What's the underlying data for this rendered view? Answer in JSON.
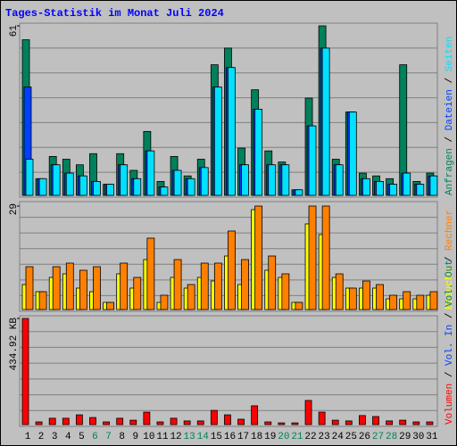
{
  "chart_data": [
    {
      "type": "bar",
      "title": "Tages-Statistik im Monat Juli 2024",
      "ylim": [
        0,
        61
      ],
      "yticks": [
        61
      ],
      "legend_separator": "/",
      "series": [
        {
          "name": "Anfragen",
          "color": "#00805c",
          "values": [
            56,
            6,
            14,
            13,
            11,
            15,
            4,
            15,
            9,
            23,
            5,
            14,
            7,
            13,
            47,
            53,
            17,
            38,
            16,
            12,
            2,
            35,
            61,
            13,
            30,
            8,
            7,
            6,
            47,
            5,
            8
          ]
        },
        {
          "name": "Dateien",
          "color": "#0040ff",
          "values": [
            39,
            6,
            11,
            8,
            7,
            5,
            4,
            11,
            6,
            16,
            3,
            9,
            6,
            10,
            39,
            46,
            11,
            31,
            11,
            11,
            2,
            25,
            53,
            11,
            30,
            6,
            5,
            4,
            8,
            4,
            7
          ]
        },
        {
          "name": "Seiten",
          "color": "#00e0ff",
          "values": [
            13,
            6,
            11,
            8,
            7,
            5,
            4,
            11,
            6,
            16,
            3,
            9,
            6,
            10,
            39,
            46,
            11,
            31,
            11,
            11,
            2,
            25,
            53,
            11,
            30,
            6,
            5,
            4,
            8,
            4,
            7
          ]
        }
      ]
    },
    {
      "type": "bar",
      "ylim": [
        0,
        29
      ],
      "yticks": [
        29
      ],
      "series": [
        {
          "name": "Besuche",
          "color": "#ffff00",
          "values": [
            7,
            5,
            9,
            10,
            6,
            5,
            2,
            10,
            6,
            14,
            2,
            9,
            6,
            9,
            8,
            15,
            7,
            28,
            11,
            9,
            2,
            24,
            21,
            9,
            6,
            6,
            6,
            3,
            3,
            3,
            4
          ]
        },
        {
          "name": "Rechner",
          "color": "#ff8000",
          "values": [
            12,
            5,
            12,
            13,
            11,
            12,
            2,
            13,
            9,
            20,
            4,
            14,
            7,
            13,
            13,
            22,
            14,
            29,
            15,
            10,
            2,
            29,
            29,
            10,
            6,
            8,
            7,
            4,
            5,
            4,
            5
          ]
        }
      ]
    },
    {
      "type": "bar",
      "ylim": [
        0,
        434.92
      ],
      "yticks": [
        {
          "value": 434.92,
          "label": "434.92 KB"
        }
      ],
      "series": [
        {
          "name": "Volumen",
          "color": "#ff0000",
          "values": [
            434.92,
            11,
            26,
            26,
            40,
            29,
            11,
            26,
            18,
            51,
            11,
            26,
            15,
            15,
            58,
            40,
            22,
            77,
            11,
            7,
            7,
            99,
            51,
            18,
            15,
            37,
            33,
            15,
            18,
            11,
            11
          ]
        }
      ],
      "legend_labels": [
        {
          "text": "Vol. In",
          "color": "#0040ff"
        },
        {
          "text": "Vol. Out",
          "color": "#00805c"
        }
      ],
      "categories": [
        "1",
        "2",
        "3",
        "4",
        "5",
        "6",
        "7",
        "8",
        "9",
        "10",
        "11",
        "12",
        "13",
        "14",
        "15",
        "16",
        "17",
        "18",
        "19",
        "20",
        "21",
        "22",
        "23",
        "24",
        "25",
        "26",
        "27",
        "28",
        "29",
        "30",
        "31"
      ],
      "category_colors": [
        "#000000",
        "#000000",
        "#000000",
        "#000000",
        "#000000",
        "#00805c",
        "#00805c",
        "#000000",
        "#000000",
        "#000000",
        "#000000",
        "#000000",
        "#00805c",
        "#00805c",
        "#000000",
        "#000000",
        "#000000",
        "#000000",
        "#000000",
        "#00805c",
        "#00805c",
        "#000000",
        "#000000",
        "#000000",
        "#000000",
        "#000000",
        "#00805c",
        "#00805c",
        "#000000",
        "#000000",
        "#000000"
      ]
    }
  ]
}
